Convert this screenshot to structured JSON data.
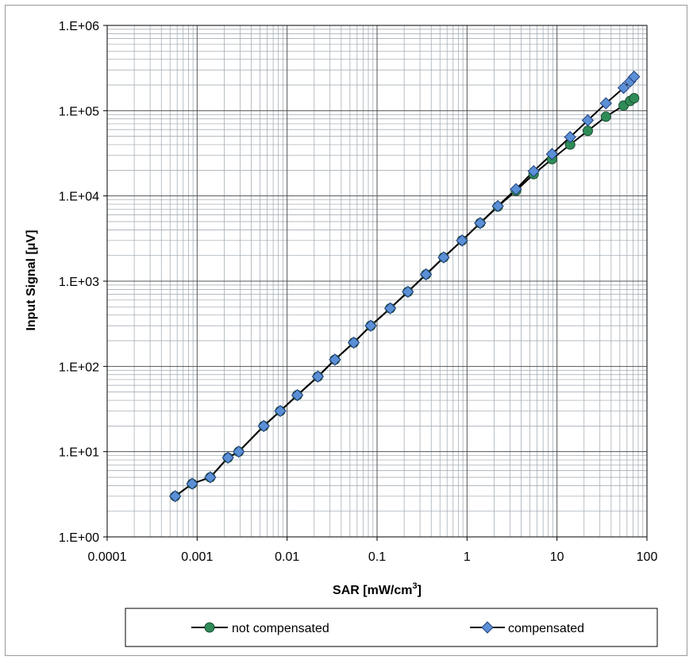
{
  "chart_data": {
    "type": "line",
    "xlabel": "SAR [mW/cm",
    "xlabel_sup": "3",
    "xlabel_close": "]",
    "ylabel": "Input Signal [μV]",
    "x_scale": "log",
    "y_scale": "log",
    "xlim": [
      0.0001,
      100
    ],
    "ylim": [
      1,
      1000000
    ],
    "grid": true,
    "legend_position": "bottom",
    "x_tick_labels": [
      "0.0001",
      "0.001",
      "0.01",
      "0.1",
      "1",
      "10",
      "100"
    ],
    "y_tick_labels": [
      "1.E+00",
      "1.E+01",
      "1.E+02",
      "1.E+03",
      "1.E+04",
      "1.E+05",
      "1.E+06"
    ],
    "series": [
      {
        "name": "not compensated",
        "color": "#2e8b57",
        "marker": "circle",
        "x": [
          0.00057,
          0.00088,
          0.0014,
          0.0022,
          0.0029,
          0.0055,
          0.0084,
          0.013,
          0.022,
          0.034,
          0.055,
          0.085,
          0.14,
          0.22,
          0.35,
          0.55,
          0.88,
          1.4,
          2.2,
          3.5,
          5.5,
          8.8,
          14,
          22,
          35,
          55,
          65,
          72
        ],
        "y": [
          3,
          4.2,
          5,
          8.5,
          10,
          20,
          30,
          46,
          76,
          120,
          190,
          300,
          480,
          750,
          1200,
          1900,
          3000,
          4800,
          7500,
          11500,
          18000,
          27000,
          40000,
          58000,
          85000,
          115000,
          130000,
          140000
        ]
      },
      {
        "name": "compensated",
        "color": "#5b8fd6",
        "marker": "diamond",
        "x": [
          0.00057,
          0.00088,
          0.0014,
          0.0022,
          0.0029,
          0.0055,
          0.0084,
          0.013,
          0.022,
          0.034,
          0.055,
          0.085,
          0.14,
          0.22,
          0.35,
          0.55,
          0.88,
          1.4,
          2.2,
          3.5,
          5.5,
          8.8,
          14,
          22,
          35,
          55,
          65,
          72
        ],
        "y": [
          3,
          4.2,
          5,
          8.5,
          10,
          20,
          30,
          46,
          76,
          120,
          190,
          300,
          480,
          750,
          1200,
          1900,
          3000,
          4800,
          7600,
          12000,
          19500,
          31000,
          49000,
          77000,
          122000,
          185000,
          220000,
          250000
        ]
      }
    ]
  }
}
